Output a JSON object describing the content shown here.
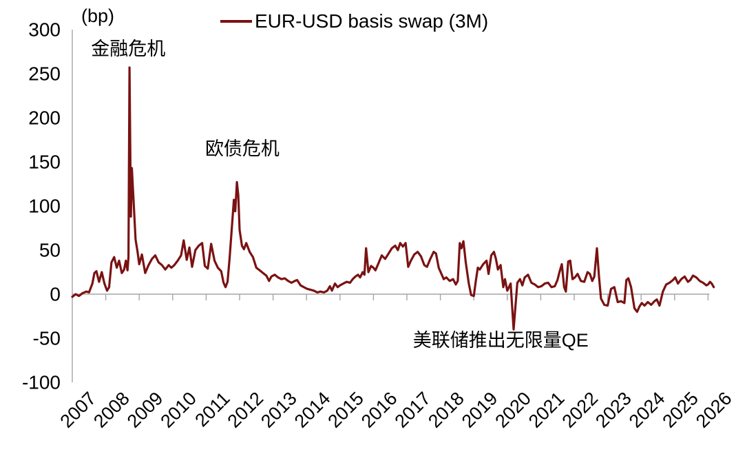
{
  "chart_data": {
    "type": "line",
    "unit_label": "(bp)",
    "xlabel": "",
    "ylabel": "",
    "ylim": [
      -100,
      300
    ],
    "yticks": [
      300,
      250,
      200,
      150,
      100,
      50,
      0,
      -50,
      -100
    ],
    "xticks": [
      2007,
      2008,
      2009,
      2010,
      2011,
      2012,
      2013,
      2014,
      2015,
      2016,
      2017,
      2018,
      2019,
      2020,
      2021,
      2022,
      2023,
      2024,
      2025,
      2026
    ],
    "grid": false,
    "legend_position": "top",
    "annotations": [
      {
        "text": "金融危机",
        "t": 2007.56,
        "v": 271,
        "anchor": "start"
      },
      {
        "text": "欧债危机",
        "t": 2010.97,
        "v": 158,
        "anchor": "start"
      },
      {
        "text": "美联储推出无限量QE",
        "t": 2017.18,
        "v": -59,
        "anchor": "start"
      }
    ],
    "series": [
      {
        "name": "EUR-USD basis swap (3M)",
        "color": "#7a1212",
        "points": [
          [
            2007.0,
            -3
          ],
          [
            2007.1,
            0
          ],
          [
            2007.2,
            -2
          ],
          [
            2007.3,
            1
          ],
          [
            2007.42,
            3
          ],
          [
            2007.5,
            2
          ],
          [
            2007.6,
            12
          ],
          [
            2007.66,
            24
          ],
          [
            2007.72,
            26
          ],
          [
            2007.8,
            14
          ],
          [
            2007.88,
            25
          ],
          [
            2007.96,
            12
          ],
          [
            2008.04,
            4
          ],
          [
            2008.1,
            8
          ],
          [
            2008.17,
            36
          ],
          [
            2008.25,
            42
          ],
          [
            2008.33,
            30
          ],
          [
            2008.4,
            38
          ],
          [
            2008.48,
            24
          ],
          [
            2008.55,
            28
          ],
          [
            2008.6,
            38
          ],
          [
            2008.65,
            27
          ],
          [
            2008.68,
            42
          ],
          [
            2008.71,
            257
          ],
          [
            2008.75,
            88
          ],
          [
            2008.78,
            143
          ],
          [
            2008.84,
            100
          ],
          [
            2008.89,
            62
          ],
          [
            2008.95,
            48
          ],
          [
            2009.0,
            34
          ],
          [
            2009.08,
            45
          ],
          [
            2009.18,
            24
          ],
          [
            2009.28,
            33
          ],
          [
            2009.38,
            40
          ],
          [
            2009.48,
            44
          ],
          [
            2009.58,
            36
          ],
          [
            2009.68,
            33
          ],
          [
            2009.78,
            28
          ],
          [
            2009.88,
            33
          ],
          [
            2009.96,
            30
          ],
          [
            2010.05,
            33
          ],
          [
            2010.15,
            38
          ],
          [
            2010.25,
            44
          ],
          [
            2010.33,
            61
          ],
          [
            2010.42,
            39
          ],
          [
            2010.5,
            53
          ],
          [
            2010.58,
            31
          ],
          [
            2010.68,
            50
          ],
          [
            2010.78,
            55
          ],
          [
            2010.88,
            58
          ],
          [
            2010.96,
            32
          ],
          [
            2011.05,
            29
          ],
          [
            2011.15,
            57
          ],
          [
            2011.25,
            38
          ],
          [
            2011.35,
            30
          ],
          [
            2011.45,
            26
          ],
          [
            2011.52,
            13
          ],
          [
            2011.58,
            8
          ],
          [
            2011.64,
            14
          ],
          [
            2011.7,
            40
          ],
          [
            2011.77,
            76
          ],
          [
            2011.83,
            107
          ],
          [
            2011.87,
            94
          ],
          [
            2011.92,
            127
          ],
          [
            2011.96,
            112
          ],
          [
            2012.0,
            73
          ],
          [
            2012.07,
            55
          ],
          [
            2012.13,
            51
          ],
          [
            2012.2,
            58
          ],
          [
            2012.3,
            48
          ],
          [
            2012.4,
            42
          ],
          [
            2012.5,
            30
          ],
          [
            2012.6,
            27
          ],
          [
            2012.7,
            24
          ],
          [
            2012.8,
            21
          ],
          [
            2012.88,
            15
          ],
          [
            2012.95,
            20
          ],
          [
            2013.05,
            22
          ],
          [
            2013.15,
            19
          ],
          [
            2013.25,
            17
          ],
          [
            2013.35,
            18
          ],
          [
            2013.45,
            15
          ],
          [
            2013.55,
            13
          ],
          [
            2013.65,
            15
          ],
          [
            2013.72,
            16
          ],
          [
            2013.82,
            10
          ],
          [
            2013.92,
            8
          ],
          [
            2014.02,
            6
          ],
          [
            2014.12,
            5
          ],
          [
            2014.22,
            4
          ],
          [
            2014.32,
            2
          ],
          [
            2014.42,
            3
          ],
          [
            2014.52,
            2
          ],
          [
            2014.62,
            4
          ],
          [
            2014.7,
            9
          ],
          [
            2014.76,
            4
          ],
          [
            2014.85,
            12
          ],
          [
            2014.93,
            8
          ],
          [
            2015.0,
            10
          ],
          [
            2015.1,
            12
          ],
          [
            2015.2,
            14
          ],
          [
            2015.3,
            13
          ],
          [
            2015.38,
            17
          ],
          [
            2015.46,
            20
          ],
          [
            2015.54,
            22
          ],
          [
            2015.6,
            19
          ],
          [
            2015.68,
            25
          ],
          [
            2015.73,
            22
          ],
          [
            2015.78,
            52
          ],
          [
            2015.85,
            25
          ],
          [
            2015.93,
            32
          ],
          [
            2016.0,
            30
          ],
          [
            2016.06,
            27
          ],
          [
            2016.15,
            35
          ],
          [
            2016.25,
            44
          ],
          [
            2016.35,
            40
          ],
          [
            2016.45,
            46
          ],
          [
            2016.55,
            52
          ],
          [
            2016.65,
            55
          ],
          [
            2016.73,
            50
          ],
          [
            2016.8,
            58
          ],
          [
            2016.88,
            54
          ],
          [
            2016.96,
            58
          ],
          [
            2017.04,
            31
          ],
          [
            2017.12,
            38
          ],
          [
            2017.22,
            45
          ],
          [
            2017.32,
            48
          ],
          [
            2017.42,
            43
          ],
          [
            2017.52,
            33
          ],
          [
            2017.6,
            31
          ],
          [
            2017.7,
            40
          ],
          [
            2017.8,
            48
          ],
          [
            2017.87,
            46
          ],
          [
            2017.95,
            30
          ],
          [
            2018.02,
            24
          ],
          [
            2018.1,
            17
          ],
          [
            2018.18,
            19
          ],
          [
            2018.28,
            15
          ],
          [
            2018.38,
            17
          ],
          [
            2018.46,
            11
          ],
          [
            2018.52,
            15
          ],
          [
            2018.58,
            58
          ],
          [
            2018.63,
            52
          ],
          [
            2018.69,
            60
          ],
          [
            2018.76,
            36
          ],
          [
            2018.85,
            12
          ],
          [
            2018.92,
            -1
          ],
          [
            2019.0,
            -2
          ],
          [
            2019.06,
            15
          ],
          [
            2019.12,
            30
          ],
          [
            2019.18,
            28
          ],
          [
            2019.28,
            34
          ],
          [
            2019.38,
            38
          ],
          [
            2019.44,
            23
          ],
          [
            2019.52,
            44
          ],
          [
            2019.6,
            48
          ],
          [
            2019.66,
            40
          ],
          [
            2019.72,
            28
          ],
          [
            2019.8,
            33
          ],
          [
            2019.88,
            8
          ],
          [
            2019.93,
            17
          ],
          [
            2020.0,
            4
          ],
          [
            2020.1,
            12
          ],
          [
            2020.19,
            -40
          ],
          [
            2020.3,
            13
          ],
          [
            2020.38,
            17
          ],
          [
            2020.45,
            10
          ],
          [
            2020.52,
            19
          ],
          [
            2020.62,
            22
          ],
          [
            2020.72,
            13
          ],
          [
            2020.82,
            11
          ],
          [
            2020.92,
            8
          ],
          [
            2021.02,
            9
          ],
          [
            2021.12,
            12
          ],
          [
            2021.22,
            13
          ],
          [
            2021.32,
            8
          ],
          [
            2021.42,
            9
          ],
          [
            2021.5,
            16
          ],
          [
            2021.56,
            25
          ],
          [
            2021.63,
            34
          ],
          [
            2021.7,
            8
          ],
          [
            2021.75,
            3
          ],
          [
            2021.82,
            37
          ],
          [
            2021.88,
            38
          ],
          [
            2021.95,
            17
          ],
          [
            2022.02,
            19
          ],
          [
            2022.1,
            23
          ],
          [
            2022.2,
            15
          ],
          [
            2022.3,
            14
          ],
          [
            2022.4,
            25
          ],
          [
            2022.47,
            23
          ],
          [
            2022.54,
            15
          ],
          [
            2022.6,
            20
          ],
          [
            2022.68,
            52
          ],
          [
            2022.74,
            20
          ],
          [
            2022.8,
            -5
          ],
          [
            2022.9,
            -12
          ],
          [
            2023.0,
            -13
          ],
          [
            2023.1,
            6
          ],
          [
            2023.2,
            8
          ],
          [
            2023.3,
            -9
          ],
          [
            2023.4,
            -8
          ],
          [
            2023.5,
            -10
          ],
          [
            2023.56,
            16
          ],
          [
            2023.62,
            18
          ],
          [
            2023.7,
            8
          ],
          [
            2023.8,
            -16
          ],
          [
            2023.88,
            -20
          ],
          [
            2023.95,
            -14
          ],
          [
            2024.02,
            -10
          ],
          [
            2024.1,
            -13
          ],
          [
            2024.2,
            -9
          ],
          [
            2024.3,
            -12
          ],
          [
            2024.4,
            -8
          ],
          [
            2024.47,
            -6
          ],
          [
            2024.55,
            -13
          ],
          [
            2024.65,
            3
          ],
          [
            2024.75,
            11
          ],
          [
            2024.85,
            13
          ],
          [
            2024.95,
            16
          ],
          [
            2025.02,
            19
          ],
          [
            2025.1,
            12
          ],
          [
            2025.2,
            17
          ],
          [
            2025.3,
            20
          ],
          [
            2025.4,
            14
          ],
          [
            2025.47,
            16
          ],
          [
            2025.55,
            21
          ],
          [
            2025.65,
            19
          ],
          [
            2025.75,
            15
          ],
          [
            2025.85,
            13
          ],
          [
            2025.95,
            10
          ],
          [
            2026.0,
            11
          ],
          [
            2026.06,
            14
          ],
          [
            2026.11,
            12
          ],
          [
            2026.17,
            8
          ]
        ]
      }
    ]
  },
  "colors": {
    "line": "#7a1212",
    "axis": "#a6a6a6",
    "text": "#000000",
    "background": "#ffffff"
  }
}
